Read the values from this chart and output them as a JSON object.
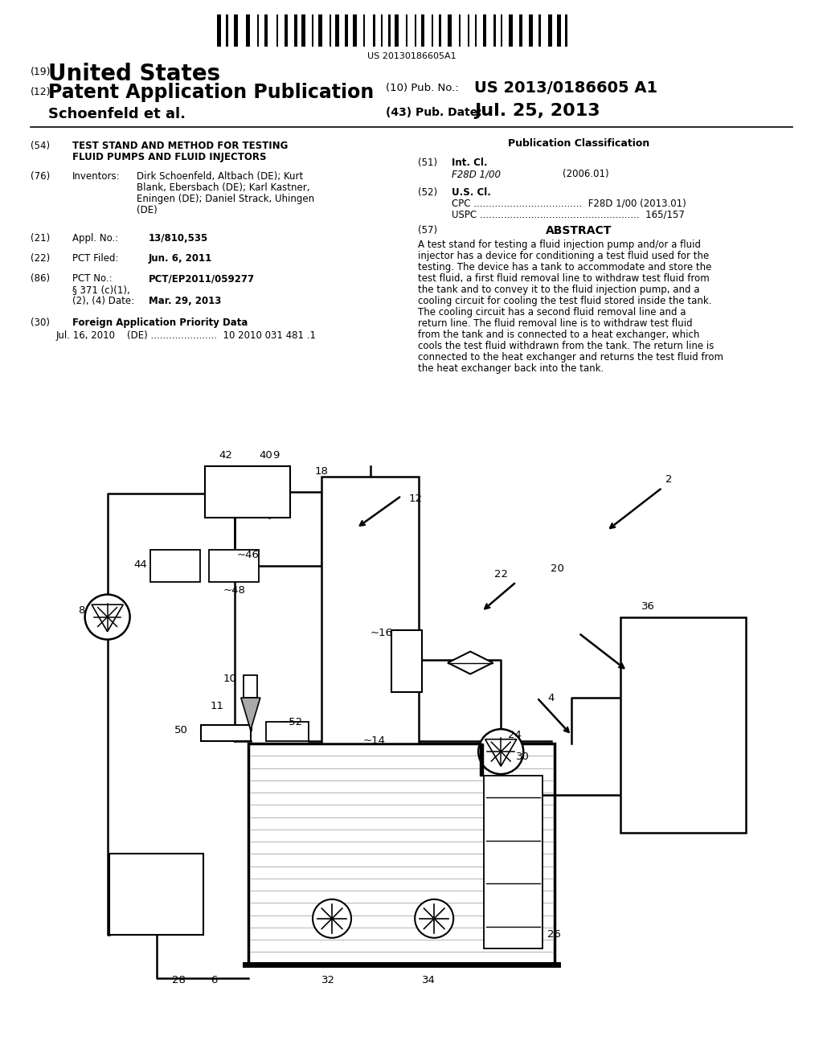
{
  "background_color": "#ffffff",
  "barcode_text": "US 20130186605A1",
  "title_19": "(19)",
  "title_us": "United States",
  "title_12": "(12)",
  "title_pat": "Patent Application Publication",
  "title_assignee": "Schoenfeld et al.",
  "pub_no_label": "(10) Pub. No.:",
  "pub_no_val": "US 2013/0186605 A1",
  "pub_date_label": "(43) Pub. Date:",
  "pub_date_val": "Jul. 25, 2013",
  "section54_num": "(54)",
  "section54_title_line1": "TEST STAND AND METHOD FOR TESTING",
  "section54_title_line2": "FLUID PUMPS AND FLUID INJECTORS",
  "section76_num": "(76)",
  "section76_label": "Inventors:",
  "section76_line1": "Dirk Schoenfeld, Altbach (DE); Kurt",
  "section76_line2": "Blank, Ebersbach (DE); Karl Kastner,",
  "section76_line3": "Eningen (DE); Daniel Strack, Uhingen",
  "section76_line4": "(DE)",
  "section21_num": "(21)",
  "section21_label": "Appl. No.:",
  "section21_val": "13/810,535",
  "section22_num": "(22)",
  "section22_label": "PCT Filed:",
  "section22_val": "Jun. 6, 2011",
  "section86_num": "(86)",
  "section86_label": "PCT No.:",
  "section86_val": "PCT/EP2011/059277",
  "section86b_label1": "§ 371 (c)(1),",
  "section86b_label2": "(2), (4) Date:",
  "section86b_val": "Mar. 29, 2013",
  "section30_num": "(30)",
  "section30_label": "Foreign Application Priority Data",
  "section30_val": "Jul. 16, 2010    (DE) ......................  10 2010 031 481 .1",
  "pub_class_title": "Publication Classification",
  "section51_num": "(51)",
  "section51_label": "Int. Cl.",
  "section51_val": "F28D 1/00",
  "section51_year": "(2006.01)",
  "section52_num": "(52)",
  "section52_label": "U.S. Cl.",
  "section52_cpc": "CPC ....................................  F28D 1/00 (2013.01)",
  "section52_uspc": "USPC .....................................................  165/157",
  "section57_num": "(57)",
  "section57_label": "ABSTRACT",
  "abstract_line1": "A test stand for testing a fluid injection pump and/or a fluid",
  "abstract_line2": "injector has a device for conditioning a test fluid used for the",
  "abstract_line3": "testing. The device has a tank to accommodate and store the",
  "abstract_line4": "test fluid, a first fluid removal line to withdraw test fluid from",
  "abstract_line5": "the tank and to convey it to the fluid injection pump, and a",
  "abstract_line6": "cooling circuit for cooling the test fluid stored inside the tank.",
  "abstract_line7": "The cooling circuit has a second fluid removal line and a",
  "abstract_line8": "return line. The fluid removal line is to withdraw test fluid",
  "abstract_line9": "from the tank and is connected to a heat exchanger, which",
  "abstract_line10": "cools the test fluid withdrawn from the tank. The return line is",
  "abstract_line11": "connected to the heat exchanger and returns the test fluid from",
  "abstract_line12": "the heat exchanger back into the tank."
}
